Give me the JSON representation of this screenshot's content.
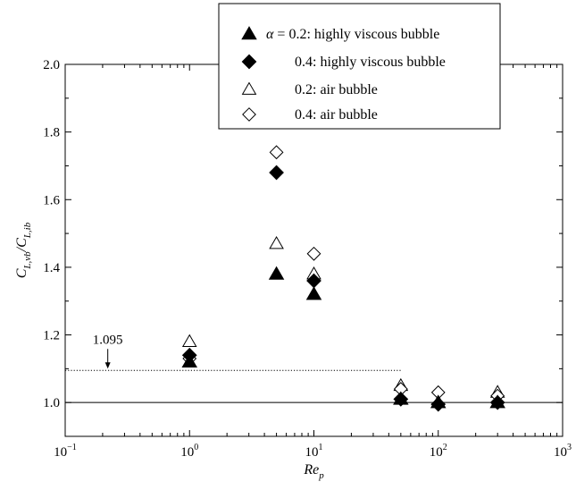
{
  "chart_data": {
    "type": "scatter",
    "title": "",
    "xlabel": "Re",
    "xlabel_sub": "p",
    "ylabel": "C",
    "ylabel_sub1": "L,vb",
    "ylabel_mid": "/C",
    "ylabel_sub2": "L,ib",
    "xscale": "log",
    "xlim": [
      0.1,
      1000
    ],
    "ylim": [
      0.9,
      2.0
    ],
    "x_ticks": [
      0.1,
      1,
      10,
      100,
      1000
    ],
    "x_tick_labels": [
      {
        "base": "10",
        "exp": "−1"
      },
      {
        "base": "10",
        "exp": "0"
      },
      {
        "base": "10",
        "exp": "1"
      },
      {
        "base": "10",
        "exp": "2"
      },
      {
        "base": "10",
        "exp": "3"
      }
    ],
    "y_ticks": [
      1.0,
      1.2,
      1.4,
      1.6,
      1.8,
      2.0
    ],
    "y_tick_labels": [
      "1.0",
      "1.2",
      "1.4",
      "1.6",
      "1.8",
      "2.0"
    ],
    "grid": false,
    "legend_position": "top-right",
    "legend_alpha_prefix": "α = ",
    "series": [
      {
        "name": "0.2: highly viscous bubble",
        "marker": "triangle",
        "filled": true,
        "x": [
          1,
          5,
          10,
          50,
          100,
          300
        ],
        "y": [
          1.12,
          1.38,
          1.32,
          1.01,
          1.0,
          1.0
        ]
      },
      {
        "name": "0.4: highly viscous bubble",
        "marker": "diamond",
        "filled": true,
        "x": [
          1,
          5,
          10,
          50,
          100,
          300
        ],
        "y": [
          1.14,
          1.68,
          1.36,
          1.01,
          0.995,
          1.0
        ]
      },
      {
        "name": "0.2: air bubble",
        "marker": "triangle",
        "filled": false,
        "x": [
          1,
          5,
          10,
          50,
          100,
          300
        ],
        "y": [
          1.18,
          1.47,
          1.38,
          1.05,
          1.0,
          1.03
        ]
      },
      {
        "name": "0.4: air bubble",
        "marker": "diamond",
        "filled": false,
        "x": [
          1,
          5,
          10,
          50,
          100,
          300
        ],
        "y": [
          1.13,
          1.74,
          1.44,
          1.04,
          1.03,
          1.02
        ]
      }
    ],
    "reference_lines": [
      {
        "y": 1.0,
        "style": "solid",
        "x_range": [
          0.1,
          1000
        ]
      },
      {
        "y": 1.095,
        "style": "dotted",
        "x_range": [
          0.1,
          50
        ]
      }
    ],
    "annotations": [
      {
        "text": "1.095",
        "x": 0.22,
        "y": 1.095
      }
    ]
  }
}
